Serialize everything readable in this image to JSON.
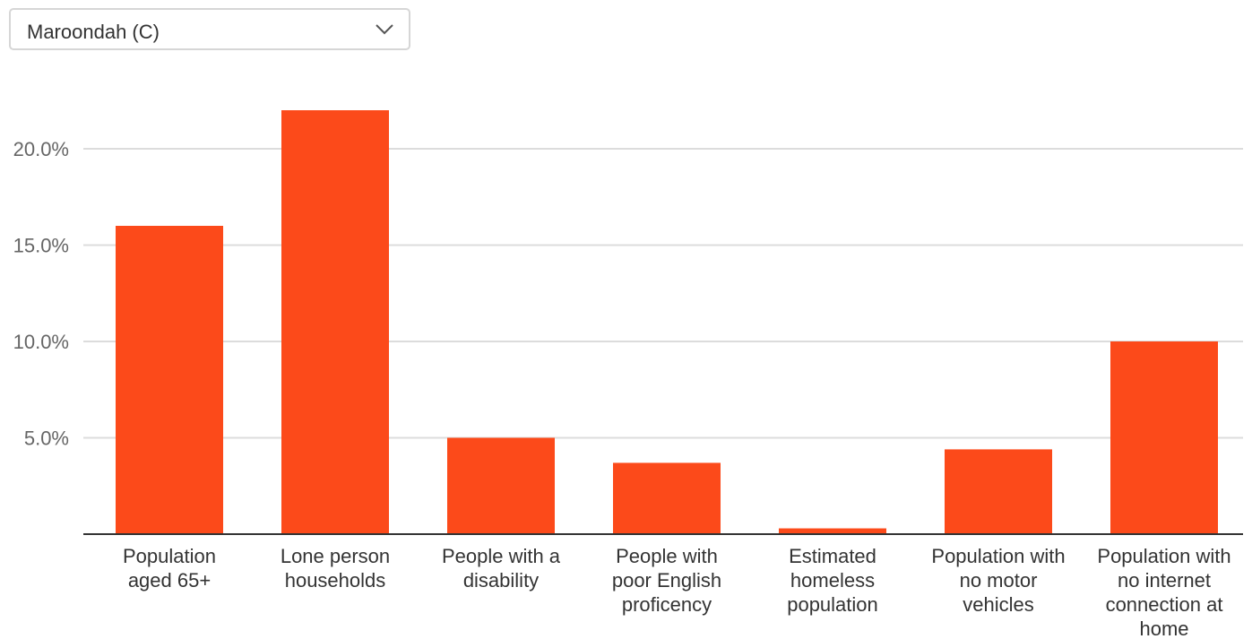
{
  "region_select": {
    "value": "Maroondah (C)",
    "icon": "chevron-down-icon"
  },
  "colors": {
    "bar": "#fc4a1a",
    "grid": "#dcdcdc",
    "axis": "#333333",
    "tick_text": "#666666",
    "category_text": "#333333"
  },
  "chart_data": {
    "type": "bar",
    "categories": [
      [
        "Population",
        "aged 65+"
      ],
      [
        "Lone person",
        "households"
      ],
      [
        "People with a",
        "disability"
      ],
      [
        "People with",
        "poor English",
        "proficency"
      ],
      [
        "Estimated",
        "homeless",
        "population"
      ],
      [
        "Population with",
        "no motor",
        "vehicles"
      ],
      [
        "Population with",
        "no internet",
        "connection at",
        "home"
      ]
    ],
    "values": [
      16.0,
      22.0,
      5.0,
      3.7,
      0.3,
      4.4,
      10.0
    ],
    "yticks": [
      "5.0%",
      "10.0%",
      "15.0%",
      "20.0%"
    ],
    "ytick_values": [
      5,
      10,
      15,
      20
    ],
    "ylim": [
      0,
      22.5
    ],
    "grid": true
  }
}
